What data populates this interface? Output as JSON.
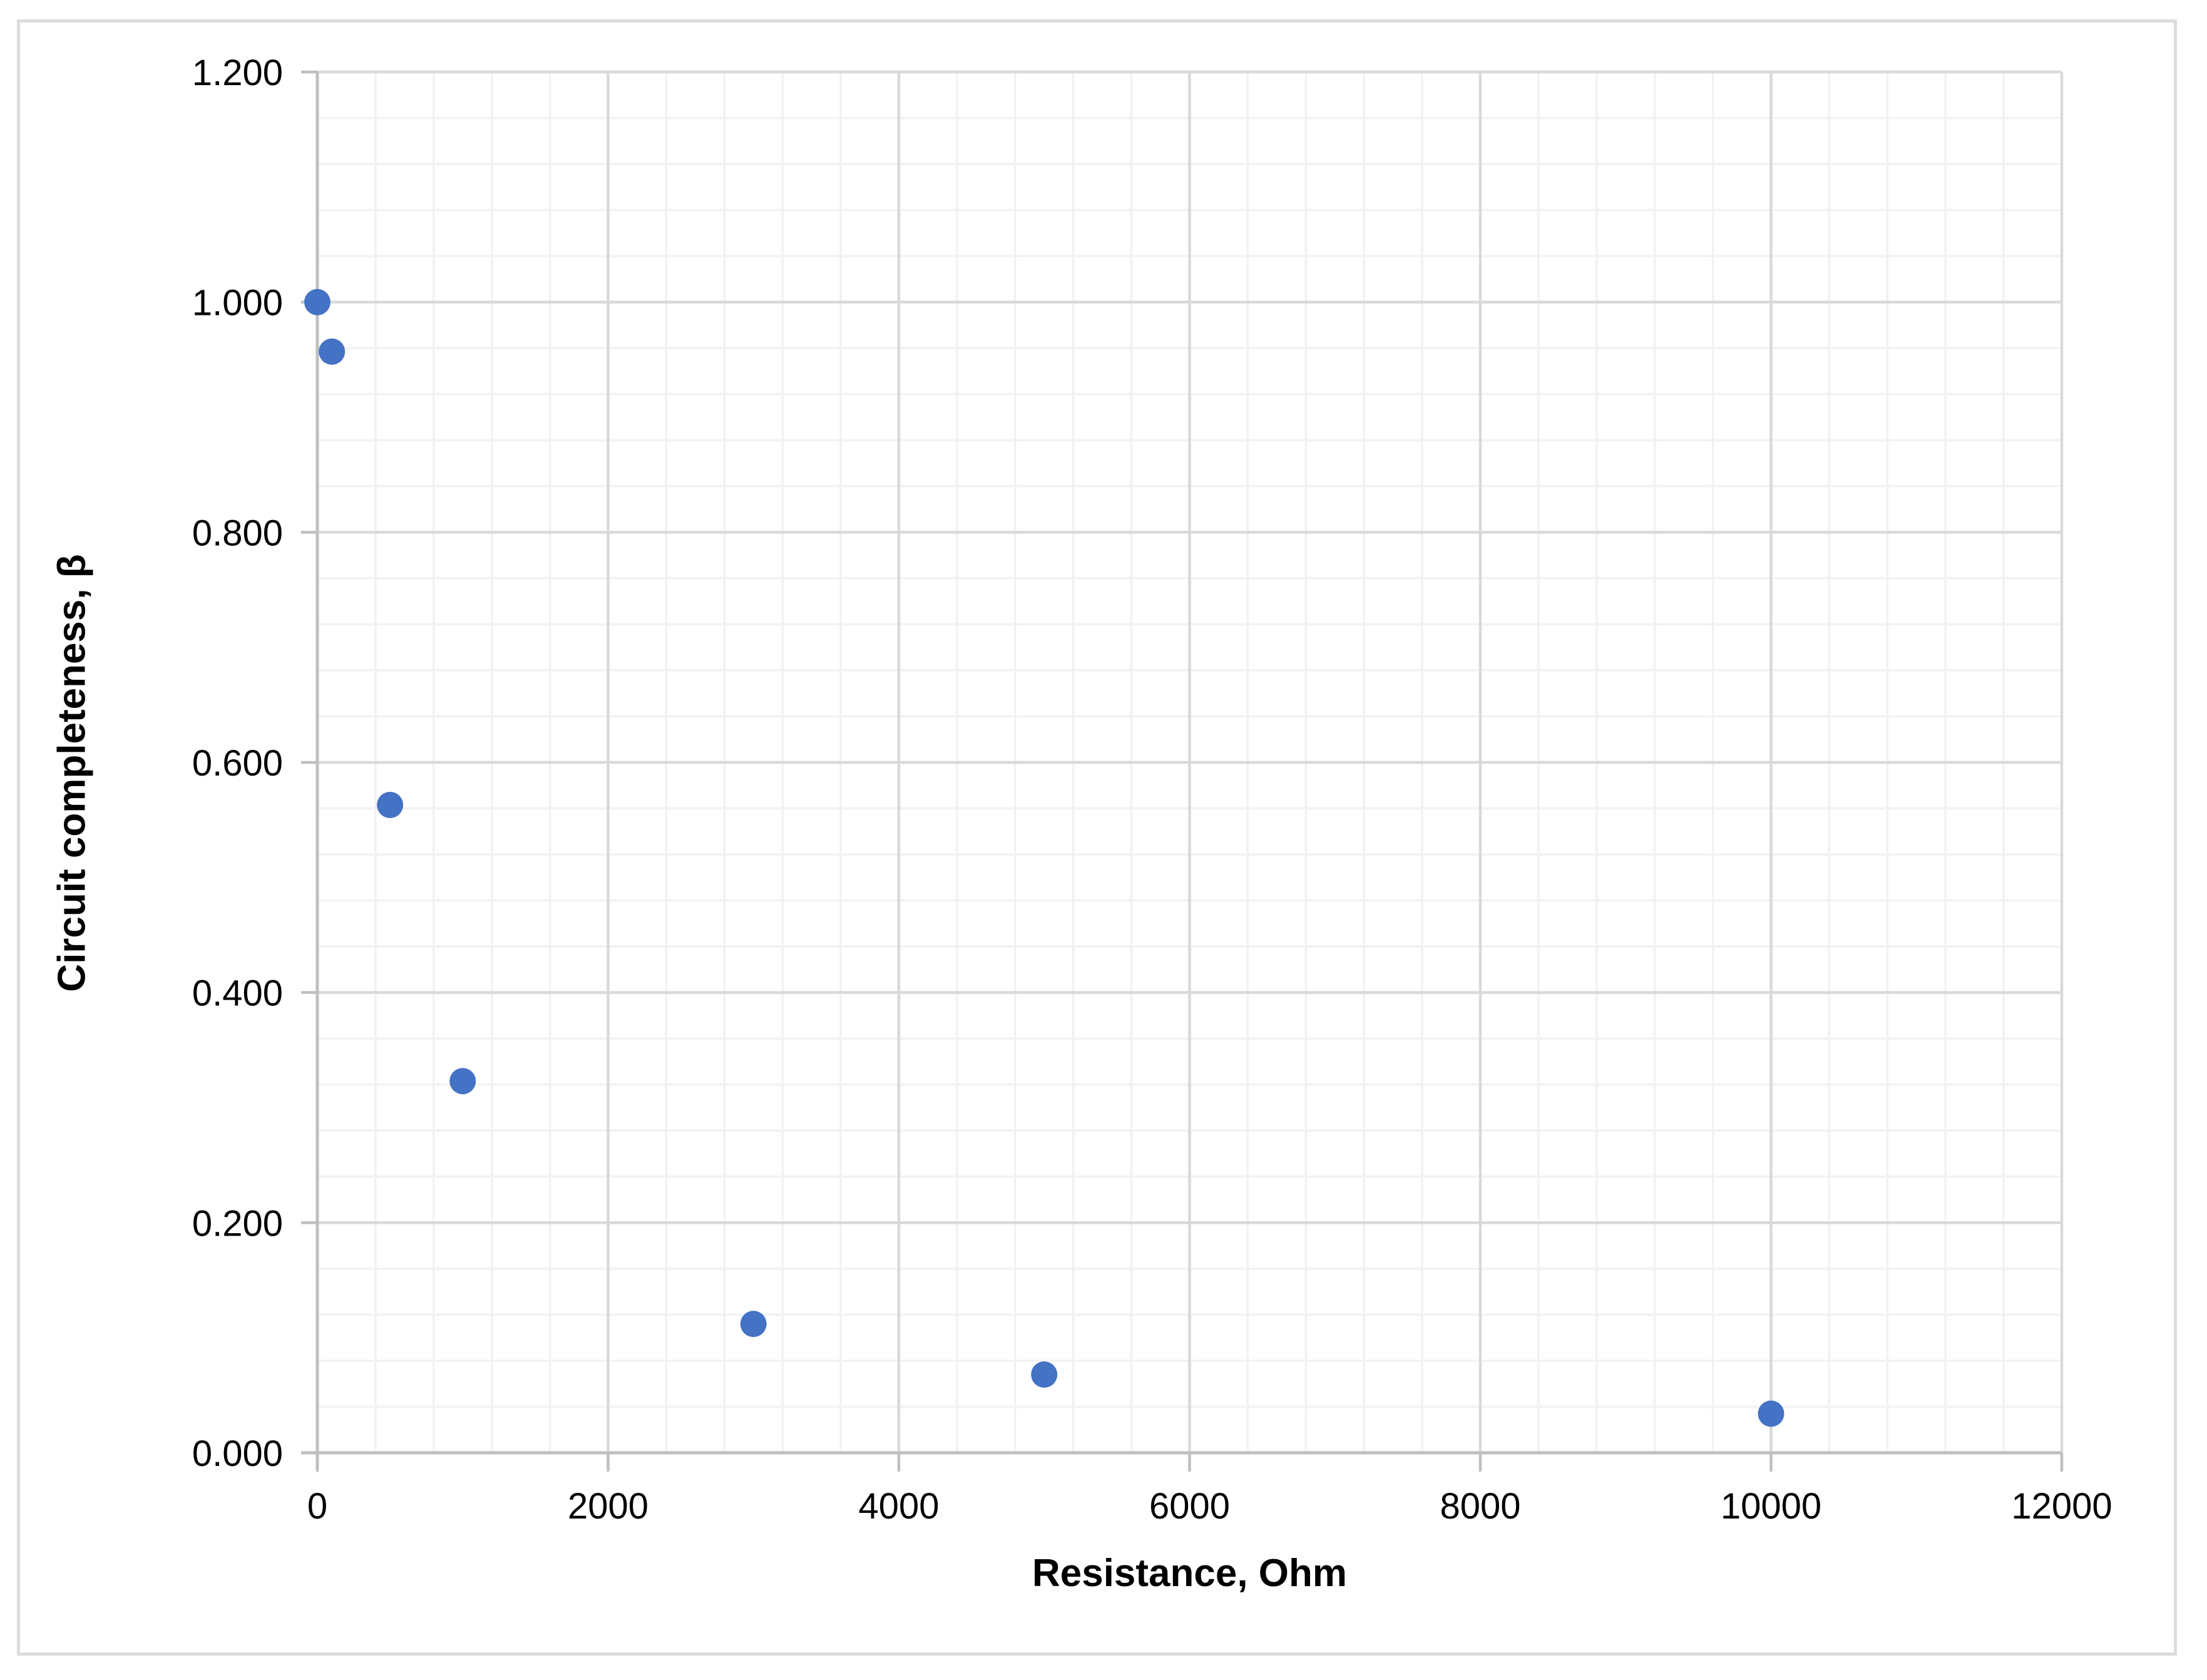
{
  "chart_data": {
    "type": "scatter",
    "title": "",
    "xlabel": "Resistance, Ohm",
    "ylabel": "Circuit completeness, β",
    "points": [
      [
        0,
        1.0
      ],
      [
        100,
        0.957
      ],
      [
        500,
        0.563
      ],
      [
        1000,
        0.323
      ],
      [
        3000,
        0.112
      ],
      [
        5000,
        0.068
      ],
      [
        10000,
        0.034
      ]
    ],
    "xlim": [
      0,
      12000
    ],
    "ylim": [
      0,
      1.2
    ],
    "x_major_unit": 2000,
    "x_minor_unit": 400,
    "y_major_unit": 0.2,
    "y_minor_unit": 0.04,
    "x_tick_labels": [
      "0",
      "2000",
      "4000",
      "6000",
      "8000",
      "10000",
      "12000"
    ],
    "y_tick_labels": [
      "0.000",
      "0.200",
      "0.400",
      "0.600",
      "0.800",
      "1.000",
      "1.200"
    ],
    "grid": "major and minor gridlines on",
    "legend_position": "none",
    "colors": {
      "marker": "#4472C4",
      "major_grid": "#d9d9d9",
      "minor_grid": "#f2f2f2",
      "axis_line": "#bfbfbf",
      "tick_mark": "#bfbfbf",
      "tick_label": "#000000",
      "axis_title": "#000000",
      "frame_border": "#dcdcdc",
      "background": "#ffffff"
    }
  }
}
